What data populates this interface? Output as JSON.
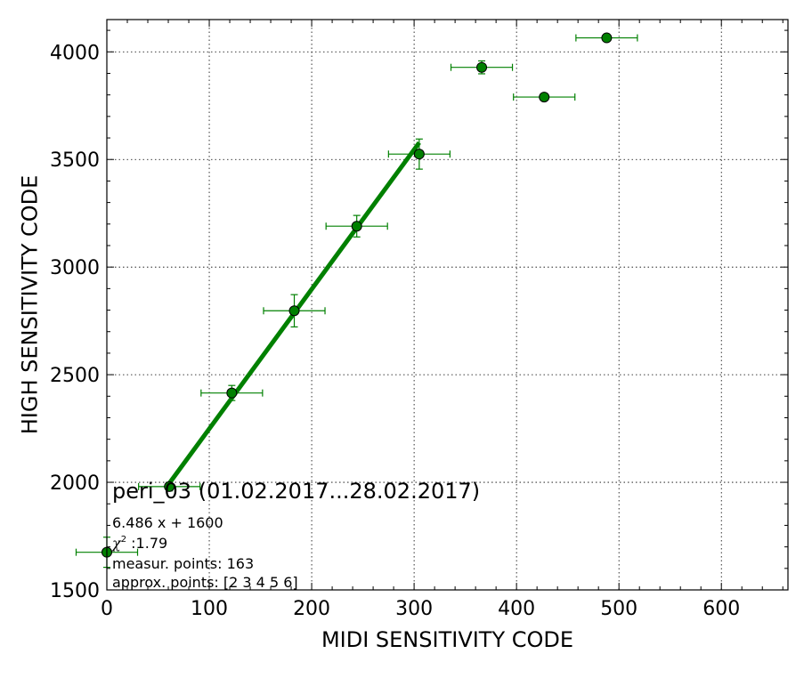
{
  "chart_data": {
    "type": "scatter",
    "xlabel": "MIDI SENSITIVITY CODE",
    "ylabel": "HIGH SENSITIVITY CODE",
    "xlim": [
      0,
      665
    ],
    "ylim": [
      1500,
      4150
    ],
    "xticks": [
      0,
      100,
      200,
      300,
      400,
      500,
      600
    ],
    "yticks": [
      1500,
      2000,
      2500,
      3000,
      3500,
      4000
    ],
    "grid": true,
    "color": "#008000",
    "points": [
      {
        "x": 0,
        "y": 1675,
        "xerr": 30,
        "yerr": 70
      },
      {
        "x": 61,
        "y": 1980,
        "xerr": 30,
        "yerr": 20
      },
      {
        "x": 122,
        "y": 2415,
        "xerr": 30,
        "yerr": 35
      },
      {
        "x": 183,
        "y": 2797,
        "xerr": 30,
        "yerr": 75
      },
      {
        "x": 244,
        "y": 3190,
        "xerr": 30,
        "yerr": 50
      },
      {
        "x": 305,
        "y": 3525,
        "xerr": 30,
        "yerr": 70
      },
      {
        "x": 366,
        "y": 3928,
        "xerr": 30,
        "yerr": 30
      },
      {
        "x": 427,
        "y": 3790,
        "xerr": 30,
        "yerr": 10
      },
      {
        "x": 488,
        "y": 4065,
        "xerr": 30,
        "yerr": 10
      }
    ],
    "fit": {
      "slope": 6.486,
      "intercept": 1600,
      "x_start": 61,
      "x_end": 305
    },
    "annotation": {
      "title": "peri_03 (01.02.2017...28.02.2017)",
      "equation": "6.486 x + 1600",
      "chi2_symbol": "χ",
      "chi2_sup": "2",
      "chi2_value": " :1.79",
      "measur_points": "measur. points: 163",
      "approx_points": "approx. points: [2 3 4 5 6]"
    }
  }
}
